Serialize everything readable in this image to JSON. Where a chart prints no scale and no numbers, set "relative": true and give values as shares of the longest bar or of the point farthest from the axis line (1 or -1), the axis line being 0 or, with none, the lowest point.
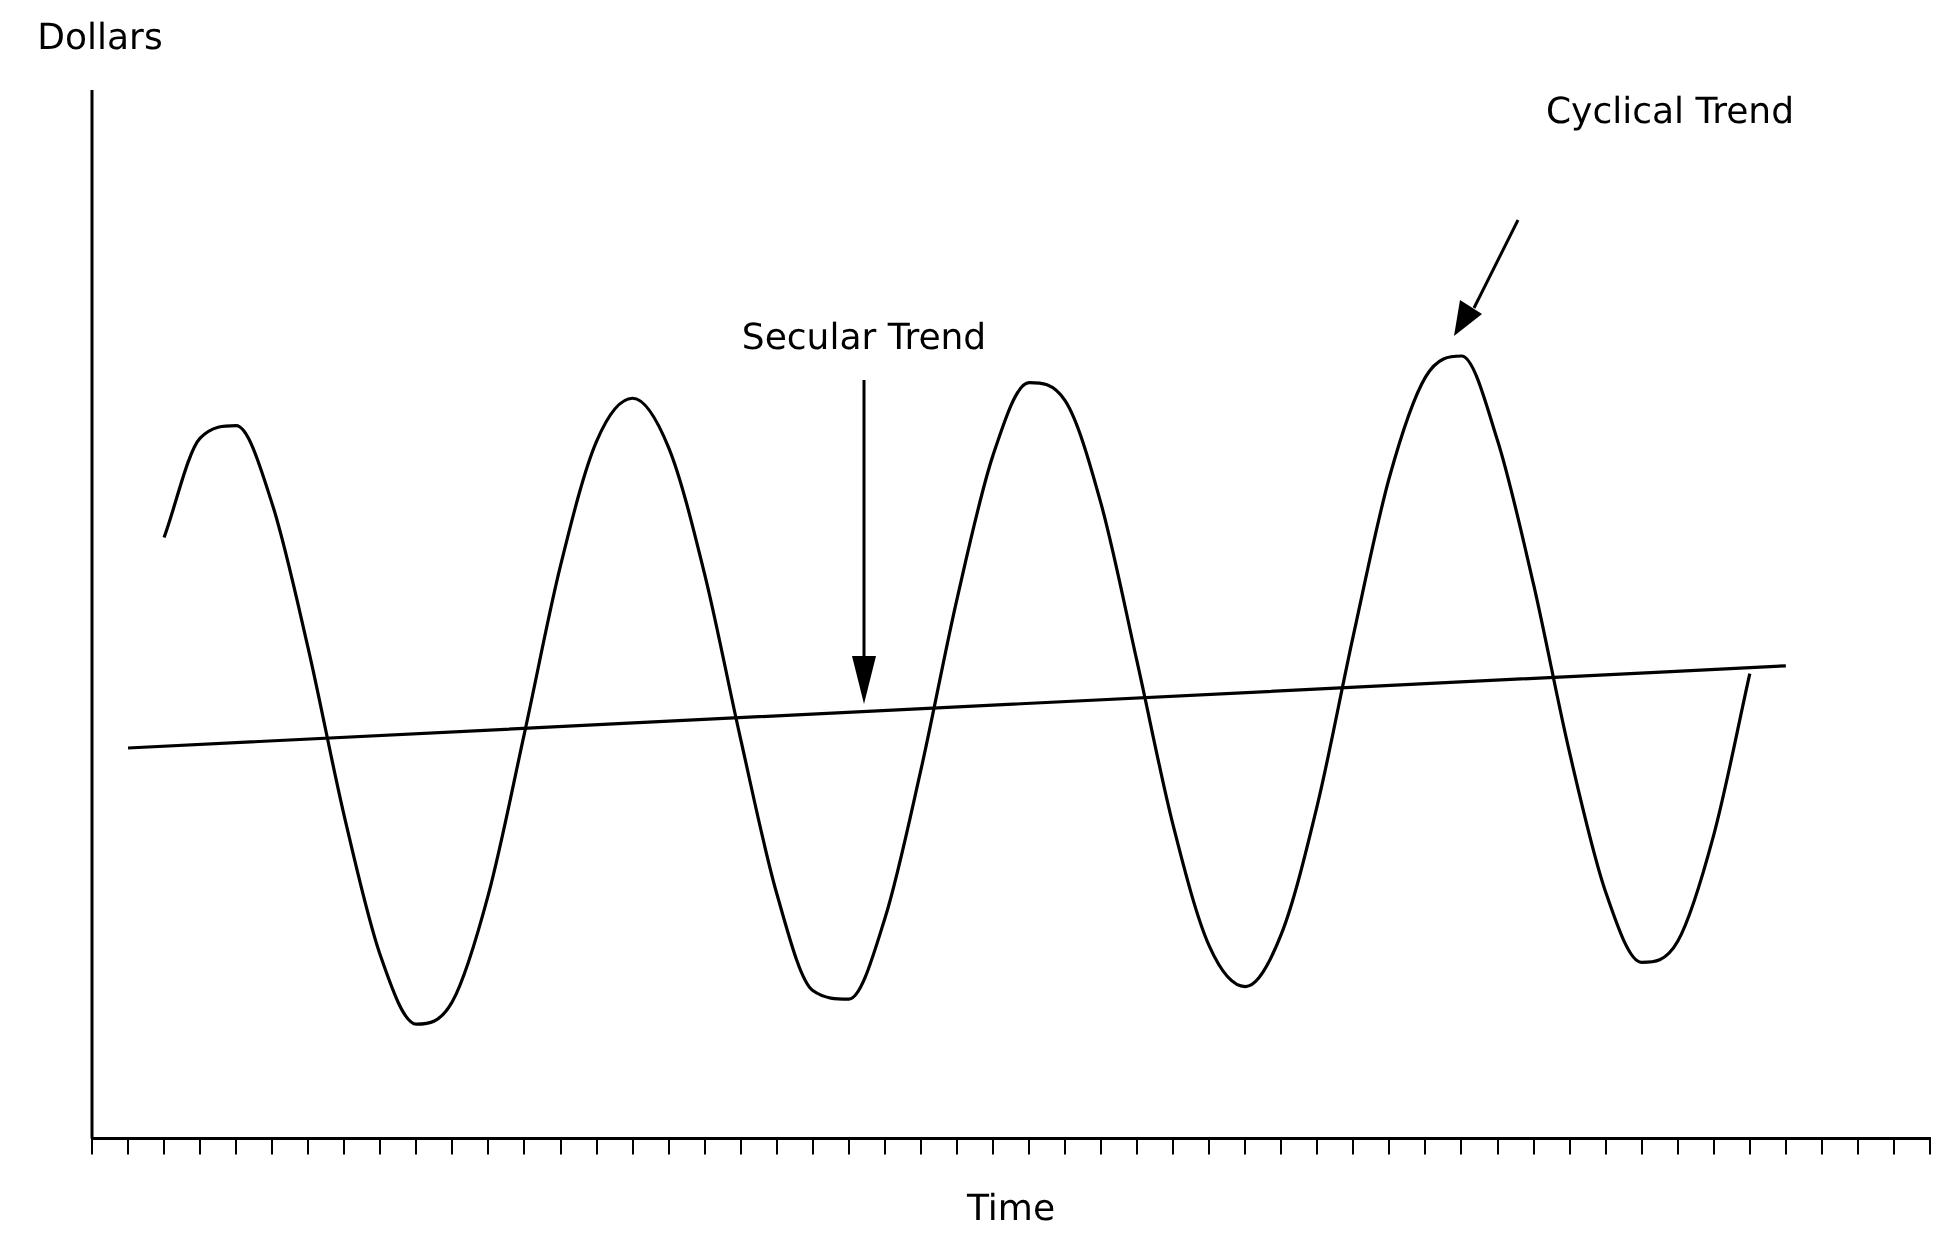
{
  "chart_data": {
    "type": "line",
    "xlabel": "Time",
    "relative": true,
    "legend": false,
    "grid": false,
    "marker": "none",
    "line_style": "solid",
    "categories": [
      null,
      null,
      null,
      null,
      null,
      null,
      null,
      null,
      null,
      null,
      null,
      null,
      null,
      null,
      null,
      null,
      null,
      null,
      null,
      null,
      null,
      null,
      null,
      null,
      null,
      null,
      null,
      null,
      null,
      null,
      null,
      null,
      null,
      null,
      null,
      null,
      null,
      null,
      null,
      null,
      null,
      null,
      null,
      null,
      null,
      null,
      null,
      null,
      null,
      null,
      null,
      null
    ],
    "series": [
      {
        "color": "#000000",
        "values": [
          null,
          null,
          0.768,
          0.895,
          0.911,
          0.811,
          0.626,
          0.412,
          0.234,
          0.146,
          0.175,
          0.312,
          0.518,
          0.732,
          0.891,
          0.946,
          0.883,
          0.721,
          0.51,
          0.313,
          0.189,
          0.178,
          0.281,
          0.471,
          0.689,
          0.873,
          0.966,
          0.943,
          0.811,
          0.609,
          0.4,
          0.246,
          0.194,
          0.261,
          0.426,
          0.643,
          0.845,
          0.973,
          1,
          0.892,
          0.708,
          0.493,
          0.315,
          0.225,
          0.252,
          0.388,
          0.594,
          null,
          null,
          null,
          null,
          null
        ]
      },
      {
        "color": "#000000",
        "values": [
          null,
          0.499,
          null,
          null,
          null,
          null,
          null,
          null,
          null,
          null,
          null,
          null,
          null,
          null,
          null,
          null,
          null,
          null,
          null,
          null,
          null,
          null,
          null,
          null,
          null,
          null,
          null,
          null,
          null,
          null,
          null,
          null,
          null,
          null,
          null,
          null,
          null,
          null,
          null,
          null,
          null,
          null,
          null,
          null,
          null,
          null,
          null,
          0.604,
          null,
          null,
          null,
          null
        ]
      }
    ],
    "annotations": [
      "Dollars",
      "Secular Trend",
      "Cyclical Trend"
    ]
  }
}
